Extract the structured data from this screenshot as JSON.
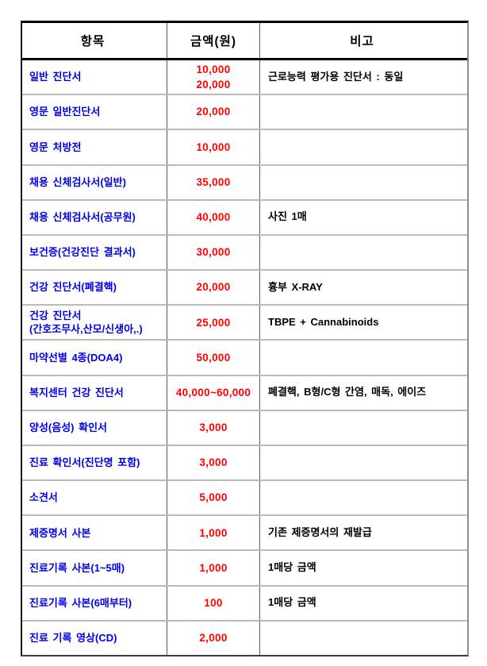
{
  "page": {
    "background": "#ffffff"
  },
  "table": {
    "headers": [
      "항목",
      "금액(원)",
      "비고"
    ],
    "colors": {
      "item": "#0000ee",
      "amount": "#ff0000",
      "remark": "#000000",
      "header_text": "#000000",
      "outer_border": "#000000",
      "row_divider": "#b9b9b9",
      "column_divider": "#5a5a5a"
    },
    "rows": [
      {
        "item": "일반 진단서",
        "amount": "10,000\n20,000",
        "remark": "근로능력 평가용 진단서 : 동일"
      },
      {
        "item": "영문 일반진단서",
        "amount": "20,000",
        "remark": ""
      },
      {
        "item": "영문 처방전",
        "amount": "10,000",
        "remark": ""
      },
      {
        "item": "채용 신체검사서(일반)",
        "amount": "35,000",
        "remark": ""
      },
      {
        "item": "채용 신체검사서(공무원)",
        "amount": "40,000",
        "remark": "사진 1매"
      },
      {
        "item": "보건증(건강진단 결과서)",
        "amount": "30,000",
        "remark": ""
      },
      {
        "item": "건강 진단서(폐결핵)",
        "amount": "20,000",
        "remark": "흉부 X-RAY"
      },
      {
        "item": "건강 진단서\n(간호조무사,산모/신생아,.)",
        "amount": "25,000",
        "remark": "TBPE + Cannabinoids"
      },
      {
        "item": "마약선별 4종(DOA4)",
        "amount": "50,000",
        "remark": ""
      },
      {
        "item": "복지센터 건강 진단서",
        "amount": "40,000~60,000",
        "remark": "폐결핵, B형/C형 간염, 매독, 에이즈"
      },
      {
        "item": "양성(음성) 확인서",
        "amount": "3,000",
        "remark": ""
      },
      {
        "item": "진료 확인서(진단명 포함)",
        "amount": "3,000",
        "remark": ""
      },
      {
        "item": "소견서",
        "amount": "5,000",
        "remark": ""
      },
      {
        "item": "제증명서 사본",
        "amount": "1,000",
        "remark": "기존 제증명서의 재발급"
      },
      {
        "item": "진료기록 사본(1~5매)",
        "amount": "1,000",
        "remark": "1매당 금액"
      },
      {
        "item": "진료기록 사본(6매부터)",
        "amount": "100",
        "remark": "1매당 금액"
      },
      {
        "item": "진료 기록 영상(CD)",
        "amount": "2,000",
        "remark": ""
      }
    ]
  }
}
